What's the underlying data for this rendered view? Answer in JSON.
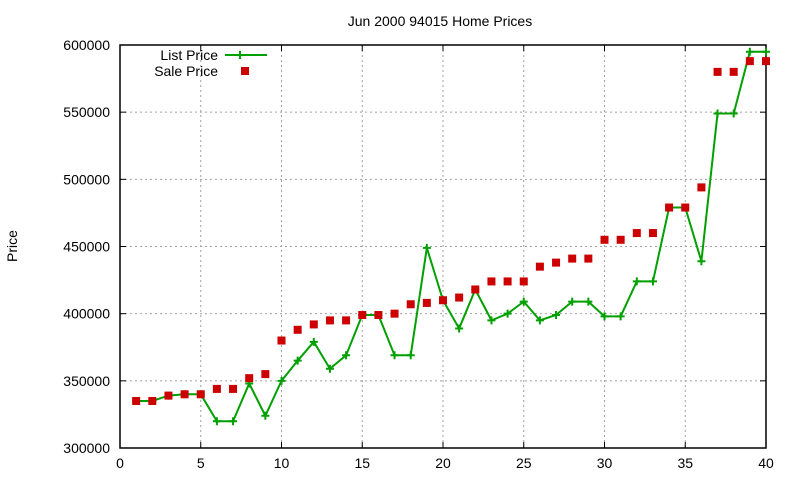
{
  "chart_data": {
    "type": "line",
    "title": "Jun 2000 94015 Home Prices",
    "xlabel": "",
    "ylabel": "Price",
    "xlim": [
      0,
      40
    ],
    "ylim": [
      300000,
      600000
    ],
    "xticks": [
      0,
      5,
      10,
      15,
      20,
      25,
      30,
      35,
      40
    ],
    "yticks": [
      300000,
      350000,
      400000,
      450000,
      500000,
      550000,
      600000
    ],
    "grid": true,
    "legend_position": "top-left",
    "x": [
      1,
      2,
      3,
      4,
      5,
      6,
      7,
      8,
      9,
      10,
      11,
      12,
      13,
      14,
      15,
      16,
      17,
      18,
      19,
      20,
      21,
      22,
      23,
      24,
      25,
      26,
      27,
      28,
      29,
      30,
      31,
      32,
      33,
      34,
      35,
      36,
      37,
      38,
      39,
      40
    ],
    "series": [
      {
        "name": "List Price",
        "style": "linespoints",
        "color": "#00a000",
        "values": [
          335000,
          335000,
          339000,
          340000,
          340000,
          319900,
          319900,
          348000,
          324000,
          350000,
          365000,
          379000,
          359000,
          369000,
          399000,
          399000,
          369000,
          369000,
          449000,
          410000,
          389000,
          418000,
          395000,
          400000,
          409000,
          395000,
          399000,
          409000,
          409000,
          398000,
          398000,
          424000,
          424000,
          479000,
          479000,
          439000,
          549000,
          549000,
          595000,
          595000
        ]
      },
      {
        "name": "Sale Price",
        "style": "points",
        "color": "#cc0000",
        "values": [
          335000,
          335000,
          339000,
          340000,
          340000,
          344000,
          344000,
          352000,
          355000,
          380000,
          388000,
          392000,
          395000,
          395000,
          399000,
          399000,
          400000,
          407000,
          408000,
          410000,
          412000,
          418000,
          424000,
          424000,
          424000,
          435000,
          438000,
          441000,
          441000,
          455000,
          455000,
          460000,
          460000,
          479000,
          479000,
          494000,
          580000,
          580000,
          588000,
          588000
        ]
      }
    ]
  }
}
